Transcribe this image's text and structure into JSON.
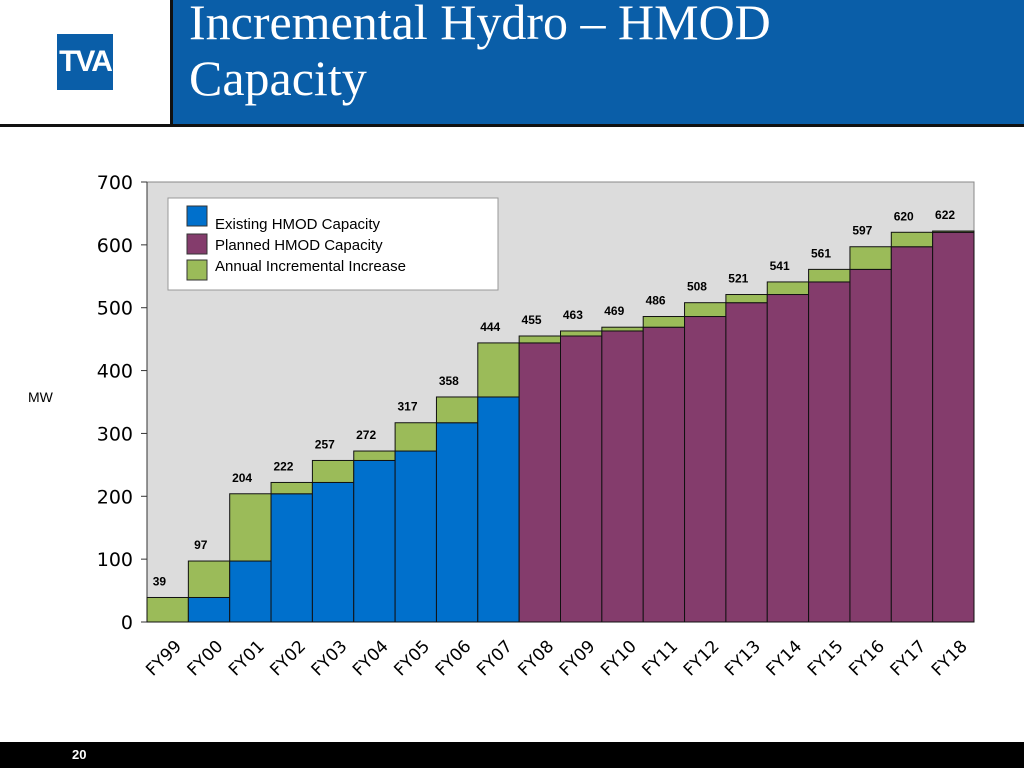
{
  "header": {
    "logo_text": "TVA",
    "title_line1": "Incremental Hydro – HMOD",
    "title_line2": "Capacity"
  },
  "footer": {
    "page_number": "20"
  },
  "colors": {
    "existing": "#0070cc",
    "planned": "#843c6c",
    "increment": "#9bbb59",
    "plot_bg": "#dcdcdc",
    "brand": "#0a5ea8"
  },
  "chart_data": {
    "type": "bar",
    "stacked": true,
    "ylabel": "MW",
    "ylim": [
      0,
      700
    ],
    "yticks": [
      0,
      100,
      200,
      300,
      400,
      500,
      600,
      700
    ],
    "grid": false,
    "legend_position": "top-left",
    "categories": [
      "FY99",
      "FY00",
      "FY01",
      "FY02",
      "FY03",
      "FY04",
      "FY05",
      "FY06",
      "FY07",
      "FY08",
      "FY09",
      "FY10",
      "FY11",
      "FY12",
      "FY13",
      "FY14",
      "FY15",
      "FY16",
      "FY17",
      "FY18"
    ],
    "series": [
      {
        "name": "Existing HMOD Capacity",
        "values": [
          0,
          39,
          97,
          204,
          222,
          257,
          272,
          317,
          358,
          0,
          0,
          0,
          0,
          0,
          0,
          0,
          0,
          0,
          0,
          0
        ]
      },
      {
        "name": "Planned HMOD Capacity",
        "values": [
          0,
          0,
          0,
          0,
          0,
          0,
          0,
          0,
          0,
          444,
          455,
          463,
          469,
          486,
          508,
          521,
          541,
          561,
          597,
          620
        ]
      },
      {
        "name": "Annual Incremental Increase",
        "values": [
          39,
          58,
          107,
          18,
          35,
          15,
          45,
          41,
          86,
          11,
          8,
          6,
          17,
          22,
          13,
          20,
          20,
          36,
          23,
          2
        ]
      }
    ],
    "totals": [
      39,
      97,
      204,
      222,
      257,
      272,
      317,
      358,
      444,
      455,
      463,
      469,
      486,
      508,
      521,
      541,
      561,
      597,
      620,
      622
    ]
  }
}
